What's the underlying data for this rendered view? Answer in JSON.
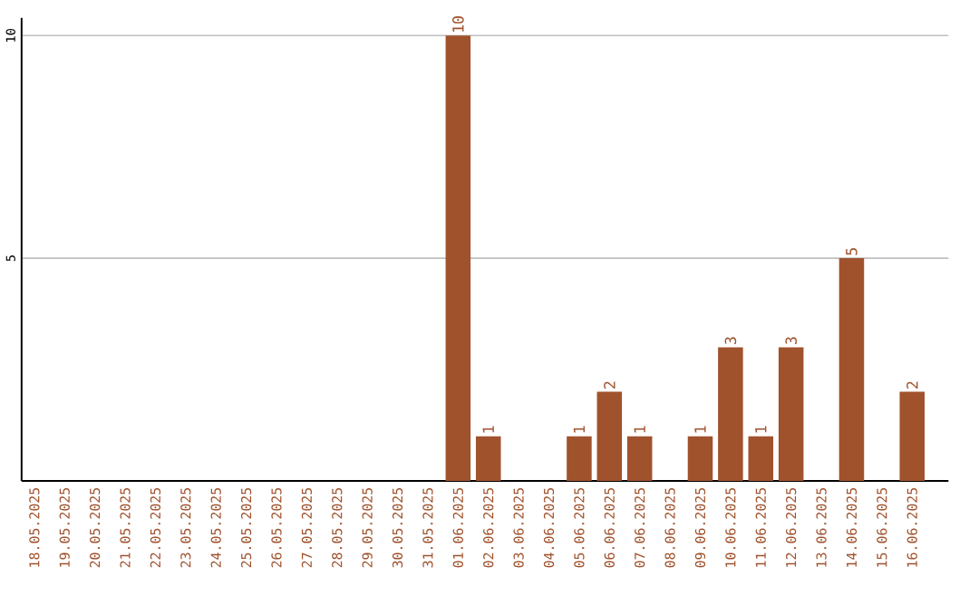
{
  "chart_data": {
    "type": "bar",
    "categories": [
      "18.05.2025",
      "19.05.2025",
      "20.05.2025",
      "21.05.2025",
      "22.05.2025",
      "23.05.2025",
      "24.05.2025",
      "25.05.2025",
      "26.05.2025",
      "27.05.2025",
      "28.05.2025",
      "29.05.2025",
      "30.05.2025",
      "31.05.2025",
      "01.06.2025",
      "02.06.2025",
      "03.06.2025",
      "04.06.2025",
      "05.06.2025",
      "06.06.2025",
      "07.06.2025",
      "08.06.2025",
      "09.06.2025",
      "10.06.2025",
      "11.06.2025",
      "12.06.2025",
      "13.06.2025",
      "14.06.2025",
      "15.06.2025",
      "16.06.2025"
    ],
    "values": [
      0,
      0,
      0,
      0,
      0,
      0,
      0,
      0,
      0,
      0,
      0,
      0,
      0,
      0,
      10,
      1,
      0,
      0,
      1,
      2,
      1,
      0,
      1,
      3,
      1,
      3,
      0,
      5,
      0,
      2
    ],
    "value_labels": [
      null,
      null,
      null,
      null,
      null,
      null,
      null,
      null,
      null,
      null,
      null,
      null,
      null,
      null,
      "10",
      "1",
      null,
      null,
      "1",
      "2",
      "1",
      null,
      "1",
      "3",
      "1",
      "3",
      null,
      "5",
      null,
      "2"
    ],
    "color": "#a0522d",
    "ylim": [
      0,
      10.4
    ],
    "yticks": [
      5,
      10
    ],
    "grid": "y"
  }
}
